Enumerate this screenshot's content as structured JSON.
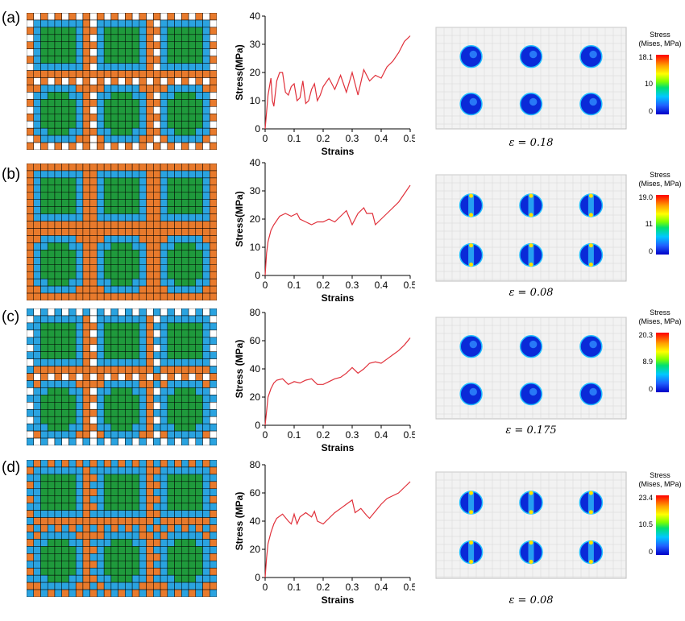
{
  "colors": {
    "matrix": "#e87a2c",
    "interphase": "#2aa3e0",
    "particle": "#1f9a3c",
    "void": "#ffffff",
    "grid": "#000000",
    "curve": "#e0303a"
  },
  "panels": [
    {
      "label": "(a)",
      "eps_label": "ε = 0.18",
      "colorbar": {
        "title1": "Stress",
        "title2": "(Mises, MPa)",
        "max": "18.1",
        "mid": "10",
        "min": "0"
      }
    },
    {
      "label": "(b)",
      "eps_label": "ε = 0.08",
      "colorbar": {
        "title1": "Stress",
        "title2": "(Mises, MPa)",
        "max": "19.0",
        "mid": "11",
        "min": "0"
      }
    },
    {
      "label": "(c)",
      "eps_label": "ε = 0.175",
      "colorbar": {
        "title1": "Stress",
        "title2": "(Mises, MPa)",
        "max": "20.3",
        "mid": "8.9",
        "min": "0"
      }
    },
    {
      "label": "(d)",
      "eps_label": "ε = 0.08",
      "colorbar": {
        "title1": "Stress",
        "title2": "(Mises, MPa)",
        "max": "23.4",
        "mid": "10.5",
        "min": "0"
      }
    }
  ],
  "chart_data": [
    {
      "type": "line",
      "xlabel": "Strains",
      "ylabel": "Stress(MPa)",
      "xlim": [
        0,
        0.5
      ],
      "ylim": [
        0,
        40
      ],
      "xticks": [
        "0",
        "0.1",
        "0.2",
        "0.3",
        "0.4",
        "0.5"
      ],
      "yticks": [
        "0",
        "10",
        "20",
        "30",
        "40"
      ],
      "x": [
        0,
        0.01,
        0.02,
        0.025,
        0.03,
        0.04,
        0.05,
        0.06,
        0.07,
        0.08,
        0.09,
        0.1,
        0.11,
        0.12,
        0.13,
        0.14,
        0.15,
        0.16,
        0.17,
        0.18,
        0.19,
        0.2,
        0.22,
        0.24,
        0.26,
        0.28,
        0.3,
        0.32,
        0.34,
        0.36,
        0.38,
        0.4,
        0.42,
        0.44,
        0.46,
        0.48,
        0.5
      ],
      "y": [
        0,
        12,
        18,
        10,
        8,
        17,
        20,
        20,
        13,
        12,
        15,
        16,
        10,
        11,
        17,
        9,
        10,
        14,
        16,
        10,
        12,
        15,
        18,
        14,
        19,
        13,
        20,
        12,
        21,
        17,
        19,
        18,
        22,
        24,
        27,
        31,
        33
      ]
    },
    {
      "type": "line",
      "xlabel": "Strains",
      "ylabel": "Stress(MPa)",
      "xlim": [
        0,
        0.5
      ],
      "ylim": [
        0,
        40
      ],
      "xticks": [
        "0",
        "0.1",
        "0.2",
        "0.3",
        "0.4",
        "0.5"
      ],
      "yticks": [
        "0",
        "10",
        "20",
        "30",
        "40"
      ],
      "x": [
        0,
        0.005,
        0.01,
        0.02,
        0.03,
        0.05,
        0.07,
        0.09,
        0.11,
        0.12,
        0.14,
        0.16,
        0.18,
        0.2,
        0.22,
        0.24,
        0.26,
        0.28,
        0.3,
        0.32,
        0.34,
        0.35,
        0.37,
        0.38,
        0.4,
        0.42,
        0.44,
        0.46,
        0.48,
        0.5
      ],
      "y": [
        0,
        8,
        12,
        16,
        18,
        21,
        22,
        21,
        22,
        20,
        19,
        18,
        19,
        19,
        20,
        19,
        21,
        23,
        18,
        22,
        24,
        22,
        22,
        18,
        20,
        22,
        24,
        26,
        29,
        32
      ]
    },
    {
      "type": "line",
      "xlabel": "Strains",
      "ylabel": "Stress (MPa)",
      "xlim": [
        0,
        0.5
      ],
      "ylim": [
        0,
        80
      ],
      "xticks": [
        "0",
        "0.1",
        "0.2",
        "0.3",
        "0.4",
        "0.5"
      ],
      "yticks": [
        "0",
        "20",
        "40",
        "60",
        "80"
      ],
      "x": [
        0,
        0.005,
        0.01,
        0.02,
        0.03,
        0.04,
        0.06,
        0.08,
        0.1,
        0.12,
        0.14,
        0.16,
        0.18,
        0.2,
        0.22,
        0.24,
        0.26,
        0.28,
        0.3,
        0.32,
        0.34,
        0.36,
        0.38,
        0.4,
        0.42,
        0.44,
        0.46,
        0.48,
        0.5
      ],
      "y": [
        0,
        10,
        20,
        26,
        30,
        32,
        33,
        29,
        31,
        30,
        32,
        33,
        29,
        29,
        31,
        33,
        34,
        37,
        41,
        37,
        40,
        44,
        45,
        44,
        47,
        50,
        53,
        57,
        62
      ]
    },
    {
      "type": "line",
      "xlabel": "Strains",
      "ylabel": "Stress (MPa)",
      "xlim": [
        0,
        0.5
      ],
      "ylim": [
        0,
        80
      ],
      "xticks": [
        "0",
        "0.1",
        "0.2",
        "0.3",
        "0.4",
        "0.5"
      ],
      "yticks": [
        "0",
        "20",
        "40",
        "60",
        "80"
      ],
      "x": [
        0,
        0.005,
        0.01,
        0.02,
        0.03,
        0.04,
        0.06,
        0.08,
        0.09,
        0.1,
        0.11,
        0.12,
        0.14,
        0.16,
        0.17,
        0.18,
        0.2,
        0.22,
        0.24,
        0.26,
        0.28,
        0.3,
        0.31,
        0.33,
        0.35,
        0.36,
        0.38,
        0.4,
        0.42,
        0.44,
        0.46,
        0.48,
        0.5
      ],
      "y": [
        0,
        14,
        24,
        32,
        38,
        42,
        45,
        40,
        38,
        45,
        38,
        43,
        46,
        43,
        47,
        40,
        38,
        42,
        46,
        49,
        52,
        55,
        46,
        49,
        44,
        42,
        47,
        52,
        56,
        58,
        60,
        64,
        68
      ]
    }
  ]
}
